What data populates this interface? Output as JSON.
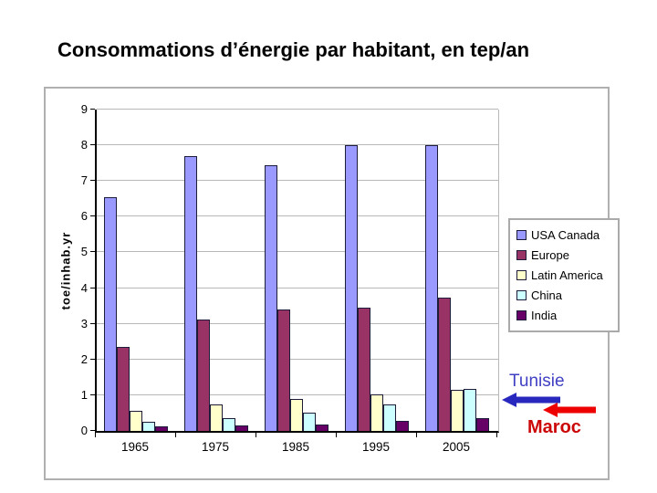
{
  "title": "Consommations d’énergie par habitant, en tep/an",
  "chart_data": {
    "type": "bar",
    "title": "",
    "xlabel": "",
    "ylabel": "toe/inhab.yr",
    "ylim": [
      0,
      9
    ],
    "ytick_step": 1,
    "grid": "horizontal",
    "legend_position": "right",
    "categories": [
      "1965",
      "1975",
      "1985",
      "1995",
      "2005"
    ],
    "series": [
      {
        "name": "USA Canada",
        "color": "#9999FF",
        "values": [
          6.55,
          7.7,
          7.45,
          8.0,
          8.0
        ]
      },
      {
        "name": "Europe",
        "color": "#993366",
        "values": [
          2.35,
          3.12,
          3.4,
          3.45,
          3.73
        ]
      },
      {
        "name": "Latin America",
        "color": "#FFFFCC",
        "values": [
          0.55,
          0.75,
          0.9,
          1.02,
          1.15
        ]
      },
      {
        "name": "China",
        "color": "#CCFFFF",
        "values": [
          0.25,
          0.36,
          0.5,
          0.74,
          1.17
        ]
      },
      {
        "name": "India",
        "color": "#660066",
        "values": [
          0.12,
          0.15,
          0.18,
          0.27,
          0.36
        ]
      }
    ]
  },
  "annotations": {
    "tunisie": {
      "label": "Tunisie",
      "color": "#4040C4",
      "arrow_color": "#2828BE"
    },
    "maroc": {
      "label": "Maroc",
      "color": "#CC0707",
      "arrow_color": "#EE0000"
    }
  }
}
